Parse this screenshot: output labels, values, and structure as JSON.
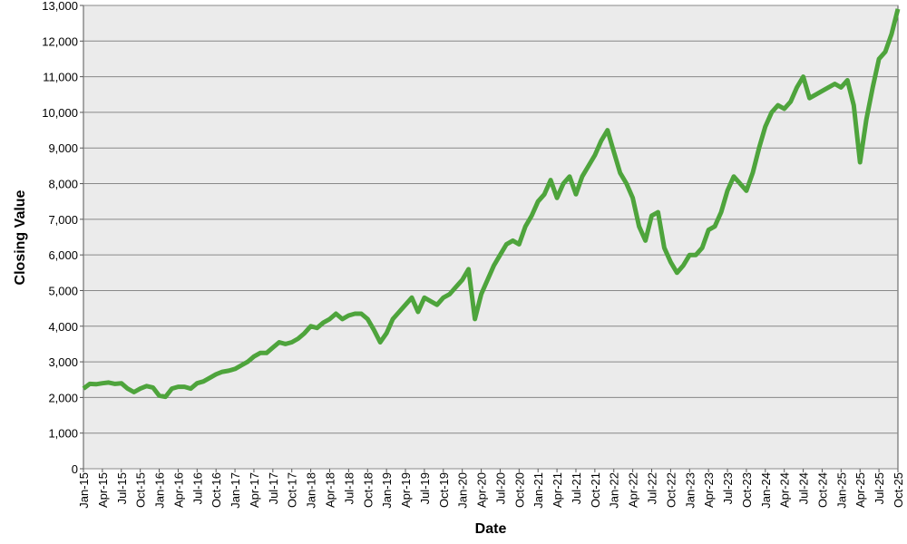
{
  "chart_data": {
    "type": "line",
    "x_label": "Date",
    "y_label": "Closing Value",
    "categories": [
      "Jan-15",
      null,
      null,
      "Apr-15",
      null,
      null,
      "Jul-15",
      null,
      null,
      "Oct-15",
      null,
      null,
      "Jan-16",
      null,
      null,
      "Apr-16",
      null,
      null,
      "Jul-16",
      null,
      null,
      "Oct-16",
      null,
      null,
      "Jan-17",
      null,
      null,
      "Apr-17",
      null,
      null,
      "Jul-17",
      null,
      null,
      "Oct-17",
      null,
      null,
      "Jan-18",
      null,
      null,
      "Apr-18",
      null,
      null,
      "Jul-18",
      null,
      null,
      "Oct-18",
      null,
      null,
      "Jan-19",
      null,
      null,
      "Apr-19",
      null,
      null,
      "Jul-19",
      null,
      null,
      "Oct-19",
      null,
      null,
      "Jan-20",
      null,
      null,
      "Apr-20",
      null,
      null,
      "Jul-20",
      null,
      null,
      "Oct-20",
      null,
      null,
      "Jan-21",
      null,
      null,
      "Apr-21",
      null,
      null,
      "Jul-21",
      null,
      null,
      "Oct-21",
      null,
      null,
      "Jan-22",
      null,
      null,
      "Apr-22",
      null,
      null,
      "Jul-22",
      null,
      null,
      "Oct-22",
      null,
      null,
      "Jan-23",
      null,
      null,
      "Apr-23",
      null,
      null,
      "Jul-23",
      null,
      null,
      "Oct-23",
      null,
      null,
      "Jan-24",
      null,
      null,
      "Apr-24",
      null,
      null,
      "Jul-24",
      null,
      null,
      "Oct-24",
      null,
      null,
      "Jan-25",
      null,
      null,
      "Apr-25",
      null,
      null,
      "Jul-25",
      null,
      null,
      "Oct-25"
    ],
    "values": [
      2250,
      2380,
      2370,
      2400,
      2420,
      2380,
      2400,
      2250,
      2150,
      2250,
      2320,
      2280,
      2050,
      2020,
      2250,
      2300,
      2300,
      2250,
      2400,
      2450,
      2550,
      2650,
      2720,
      2750,
      2800,
      2900,
      3000,
      3150,
      3250,
      3250,
      3400,
      3550,
      3500,
      3550,
      3650,
      3800,
      4000,
      3950,
      4100,
      4200,
      4350,
      4200,
      4300,
      4350,
      4350,
      4200,
      3900,
      3550,
      3800,
      4200,
      4400,
      4600,
      4800,
      4400,
      4800,
      4700,
      4600,
      4800,
      4900,
      5100,
      5300,
      5600,
      4200,
      4900,
      5300,
      5700,
      6000,
      6300,
      6400,
      6300,
      6800,
      7100,
      7500,
      7700,
      8100,
      7600,
      8000,
      8200,
      7700,
      8200,
      8500,
      8800,
      9200,
      9500,
      8900,
      8300,
      8000,
      7600,
      6800,
      6400,
      7100,
      7200,
      6200,
      5800,
      5500,
      5700,
      6000,
      6000,
      6200,
      6700,
      6800,
      7200,
      7800,
      8200,
      8000,
      7800,
      8300,
      9000,
      9600,
      10000,
      10200,
      10100,
      10300,
      10700,
      11000,
      10400,
      10500,
      10600,
      10700,
      10800,
      10700,
      10900,
      10200,
      8600,
      9800,
      10700,
      11500,
      11700,
      12200,
      12900
    ],
    "color": "#4ea43c",
    "ylim": [
      0,
      13000
    ],
    "yticks": [
      0,
      {
        "value": 1000,
        "label": "1,000"
      },
      {
        "value": 2000,
        "label": "2,000"
      },
      {
        "value": 3000,
        "label": "3,000"
      },
      {
        "value": 4000,
        "label": "4,000"
      },
      {
        "value": 5000,
        "label": "5,000"
      },
      {
        "value": 6000,
        "label": "6,000"
      },
      {
        "value": 7000,
        "label": "7,000"
      },
      {
        "value": 8000,
        "label": "8,000"
      },
      {
        "value": 9000,
        "label": "9,000"
      },
      {
        "value": 10000,
        "label": "10,000"
      },
      {
        "value": 11000,
        "label": "11,000"
      },
      {
        "value": 12000,
        "label": "12,000"
      },
      {
        "value": 13000,
        "label": "13,000"
      }
    ],
    "grid": true
  }
}
